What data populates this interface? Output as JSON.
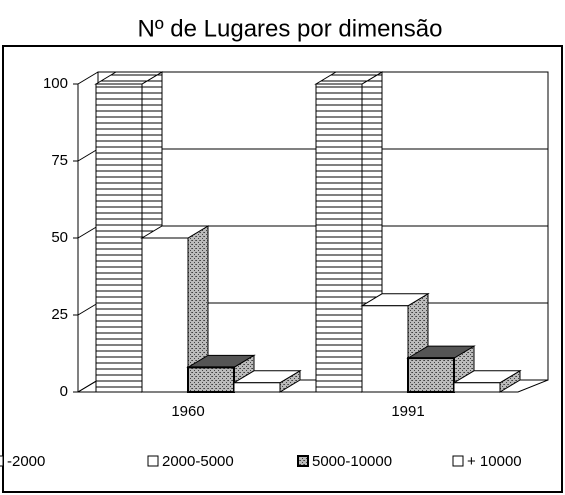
{
  "chart_data": {
    "type": "bar3d",
    "title": "Nº de  Lugares por dimensão",
    "categories": [
      "1960",
      "1991"
    ],
    "series": [
      {
        "name": "-2000",
        "color": "#ffffff",
        "values": [
          100,
          100
        ]
      },
      {
        "name": "2000-5000",
        "color": "#ffffff",
        "values": [
          50,
          28
        ]
      },
      {
        "name": "5000-10000",
        "color": "#8a8a8a",
        "values": [
          8,
          11
        ]
      },
      {
        "name": "+ 10000",
        "color": "#ffffff",
        "values": [
          3,
          3
        ]
      }
    ],
    "ylim": [
      0,
      100
    ],
    "yticks": [
      0,
      25,
      50,
      75,
      100
    ],
    "grid": true,
    "legend": "bottom"
  }
}
